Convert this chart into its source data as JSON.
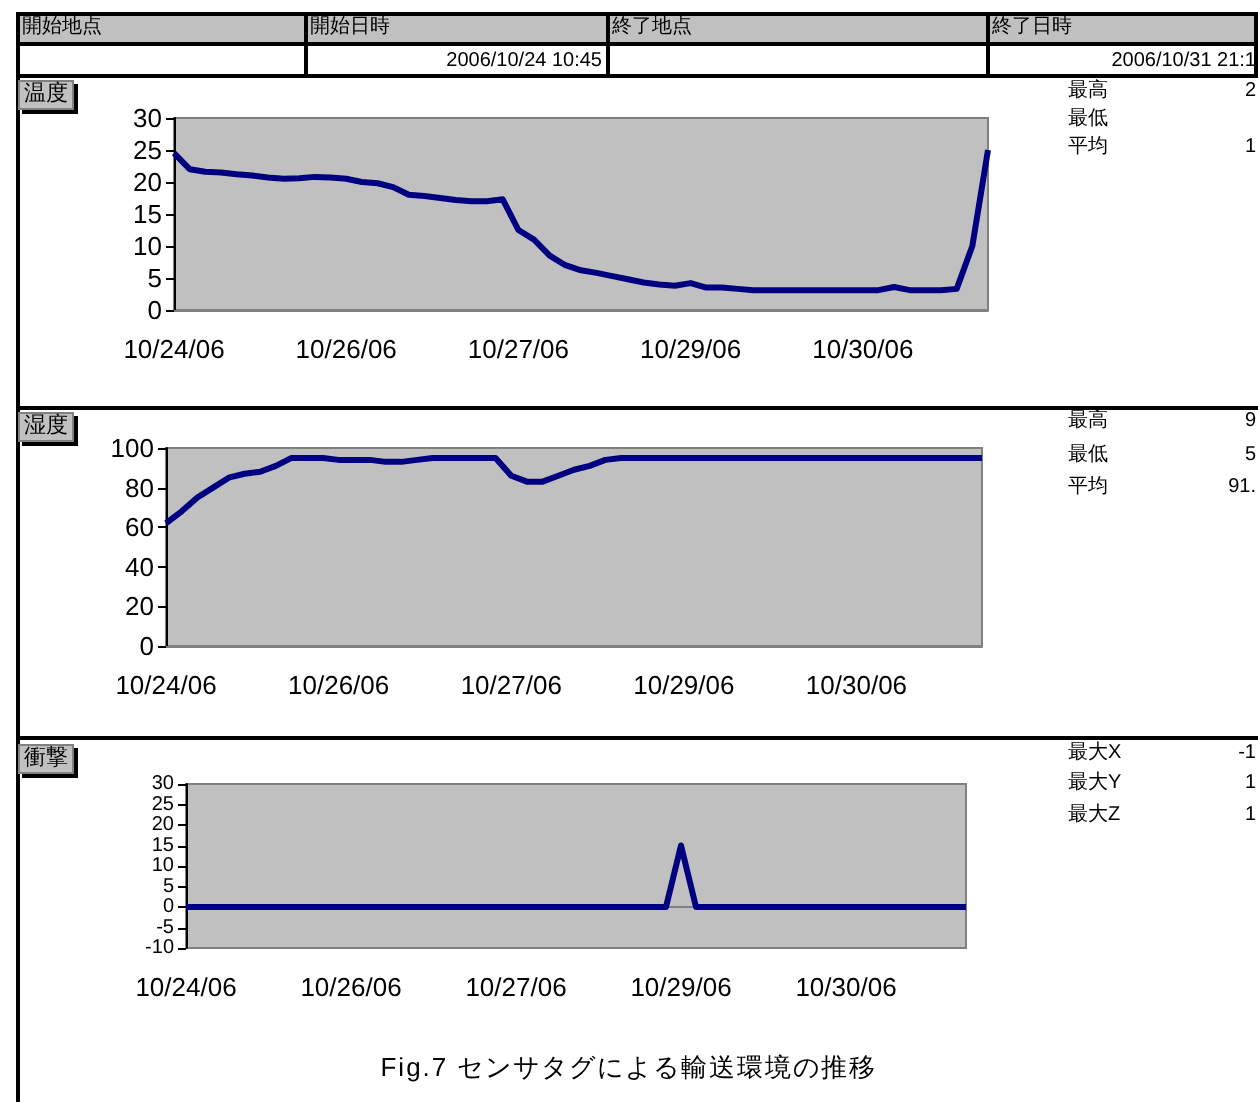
{
  "chart_data": [
    {
      "type": "other",
      "annotations": [
        "開始地点",
        "開始日時",
        "終了地点",
        "終了日時",
        "2006/10/24 10:45",
        "2006/10/31 21:1"
      ]
    },
    {
      "type": "line",
      "title": "温度",
      "categories": [
        "10/24/06",
        null,
        null,
        null,
        null,
        null,
        null,
        null,
        null,
        null,
        null,
        "10/26/06",
        null,
        null,
        null,
        null,
        null,
        null,
        null,
        null,
        null,
        null,
        "10/27/06",
        null,
        null,
        null,
        null,
        null,
        null,
        null,
        null,
        null,
        null,
        "10/29/06",
        null,
        null,
        null,
        null,
        null,
        null,
        null,
        null,
        null,
        null,
        "10/30/06",
        null,
        null,
        null,
        null,
        null,
        null,
        null,
        null
      ],
      "series": [
        {
          "color": "#000080",
          "values": [
            24.5,
            22,
            21.6,
            21.5,
            21.2,
            21,
            20.7,
            20.5,
            20.6,
            20.8,
            20.7,
            20.5,
            20,
            19.8,
            19.2,
            18,
            17.8,
            17.5,
            17.2,
            17,
            17,
            17.3,
            12.5,
            11,
            8.5,
            7,
            6.2,
            5.8,
            5.3,
            4.8,
            4.3,
            4,
            3.8,
            4.2,
            3.5,
            3.5,
            3.3,
            3.1,
            3.1,
            3.1,
            3.1,
            3.1,
            3.1,
            3.1,
            3.1,
            3.1,
            3.6,
            3.1,
            3.1,
            3.1,
            3.3,
            10,
            25
          ]
        }
      ],
      "ylim": [
        0,
        30
      ],
      "yticks": [
        0,
        5,
        10,
        15,
        20,
        25,
        30
      ],
      "marker": "none",
      "annotations": [
        "最高",
        "2",
        "最低",
        "平均",
        "1"
      ]
    },
    {
      "type": "line",
      "title": "湿度",
      "categories": [
        "10/24/06",
        null,
        null,
        null,
        null,
        null,
        null,
        null,
        null,
        null,
        null,
        "10/26/06",
        null,
        null,
        null,
        null,
        null,
        null,
        null,
        null,
        null,
        null,
        "10/27/06",
        null,
        null,
        null,
        null,
        null,
        null,
        null,
        null,
        null,
        null,
        "10/29/06",
        null,
        null,
        null,
        null,
        null,
        null,
        null,
        null,
        null,
        null,
        "10/30/06",
        null,
        null,
        null,
        null,
        null,
        null,
        null,
        null
      ],
      "series": [
        {
          "color": "#000080",
          "values": [
            62,
            68,
            75,
            80,
            85,
            87,
            88,
            91,
            95,
            95,
            95,
            94,
            94,
            94,
            93,
            93,
            94,
            95,
            95,
            95,
            95,
            95,
            86,
            83,
            83,
            86,
            89,
            91,
            94,
            95,
            95,
            95,
            95,
            95,
            95,
            95,
            95,
            95,
            95,
            95,
            95,
            95,
            95,
            95,
            95,
            95,
            95,
            95,
            95,
            95,
            95,
            95,
            95
          ]
        }
      ],
      "ylim": [
        0,
        100
      ],
      "yticks": [
        0,
        20,
        40,
        60,
        80,
        100
      ],
      "marker": "none",
      "annotations": [
        "最高",
        "9",
        "最低",
        "5",
        "平均",
        "91."
      ]
    },
    {
      "type": "line",
      "title": "衝撃",
      "categories": [
        "10/24/06",
        null,
        null,
        null,
        null,
        null,
        null,
        null,
        null,
        null,
        null,
        "10/26/06",
        null,
        null,
        null,
        null,
        null,
        null,
        null,
        null,
        null,
        null,
        "10/27/06",
        null,
        null,
        null,
        null,
        null,
        null,
        null,
        null,
        null,
        null,
        "10/29/06",
        null,
        null,
        null,
        null,
        null,
        null,
        null,
        null,
        null,
        null,
        "10/30/06",
        null,
        null,
        null,
        null,
        null,
        null,
        null,
        null
      ],
      "series": [
        {
          "color": "#000080",
          "values": [
            0,
            0,
            0,
            0,
            0,
            0,
            0,
            0,
            0,
            0,
            0,
            0,
            0,
            0,
            0,
            0,
            0,
            0,
            0,
            0,
            0,
            0,
            0,
            0,
            0,
            0,
            0,
            0,
            0,
            0,
            0,
            0,
            0,
            15,
            0,
            0,
            0,
            0,
            0,
            0,
            0,
            0,
            0,
            0,
            0,
            0,
            0,
            0,
            0,
            0,
            0,
            0,
            0
          ]
        }
      ],
      "ylim": [
        -10,
        30
      ],
      "yticks": [
        -10,
        -5,
        0,
        5,
        10,
        15,
        20,
        25,
        30
      ],
      "marker": "none",
      "annotations": [
        "最大X",
        "-1",
        "最大Y",
        "1",
        "最大Z",
        "1",
        "Fig.7 センサタグによる輸送環境の推移"
      ]
    }
  ]
}
